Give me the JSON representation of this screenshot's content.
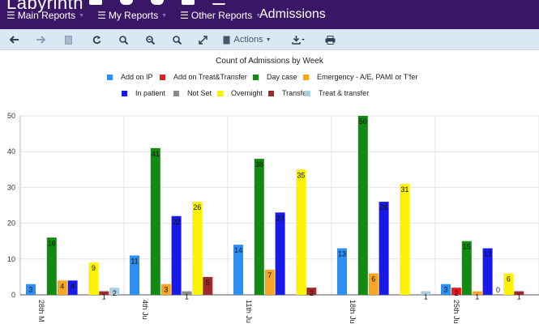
{
  "header": {
    "app_title": "Labyrinth",
    "page_title": "Admissions",
    "nav": [
      {
        "label": "Main Reports"
      },
      {
        "label": "My Reports"
      },
      {
        "label": "Other Reports"
      }
    ]
  },
  "toolbar": {
    "actions_label": "Actions"
  },
  "colors": {
    "header_bg": "#3a1766",
    "toolbar_bg": "#dce7f4"
  },
  "chart_data": {
    "type": "bar",
    "title": "Count of Admissions by Week",
    "categories": [
      "28th M",
      "4th Ju",
      "11th Ju",
      "18th Ju",
      "25th Ju"
    ],
    "ylim": [
      0,
      50
    ],
    "yticks": [
      0,
      10,
      20,
      30,
      40,
      50
    ],
    "grid": true,
    "legend_position": "top",
    "series": [
      {
        "name": "Add on IP",
        "color": "#2f8ff0",
        "values": [
          3,
          11,
          14,
          13,
          3
        ]
      },
      {
        "name": "Add on Treat&Transfer",
        "color": "#e81b1b",
        "values": [
          null,
          null,
          null,
          null,
          2
        ]
      },
      {
        "name": "Day case",
        "color": "#138a13",
        "values": [
          16,
          41,
          38,
          50,
          15
        ]
      },
      {
        "name": "Emergency - A/E, PAMI or T'fer",
        "color": "#f5a623",
        "values": [
          4,
          3,
          7,
          6,
          1
        ]
      },
      {
        "name": "In patient",
        "color": "#1a1ae8",
        "values": [
          4,
          22,
          23,
          26,
          13
        ]
      },
      {
        "name": "Not Set",
        "color": "#8a8a8a",
        "values": [
          null,
          1,
          null,
          null,
          0
        ]
      },
      {
        "name": "Overnight",
        "color": "#fff200",
        "values": [
          9,
          26,
          35,
          31,
          6
        ]
      },
      {
        "name": "Transfer",
        "color": "#9e2a2a",
        "values": [
          1,
          5,
          2,
          null,
          1
        ]
      },
      {
        "name": "Treat & transfer",
        "color": "#a8cfe0",
        "values": [
          2,
          null,
          null,
          1,
          null
        ]
      }
    ],
    "data_labels": [
      [
        "3",
        null,
        "16",
        "4",
        "4",
        null,
        "9",
        "1",
        "2"
      ],
      [
        "11",
        null,
        "41",
        "3",
        "22",
        "1",
        "26",
        "5",
        null
      ],
      [
        "14",
        null,
        "38",
        "7",
        "23",
        null,
        "35",
        "2",
        null
      ],
      [
        "13",
        null,
        "50",
        "6",
        "26",
        null,
        "31",
        null,
        "1"
      ],
      [
        "3",
        "2",
        "15",
        "1",
        "13",
        "0",
        "6",
        "1",
        null
      ]
    ]
  }
}
